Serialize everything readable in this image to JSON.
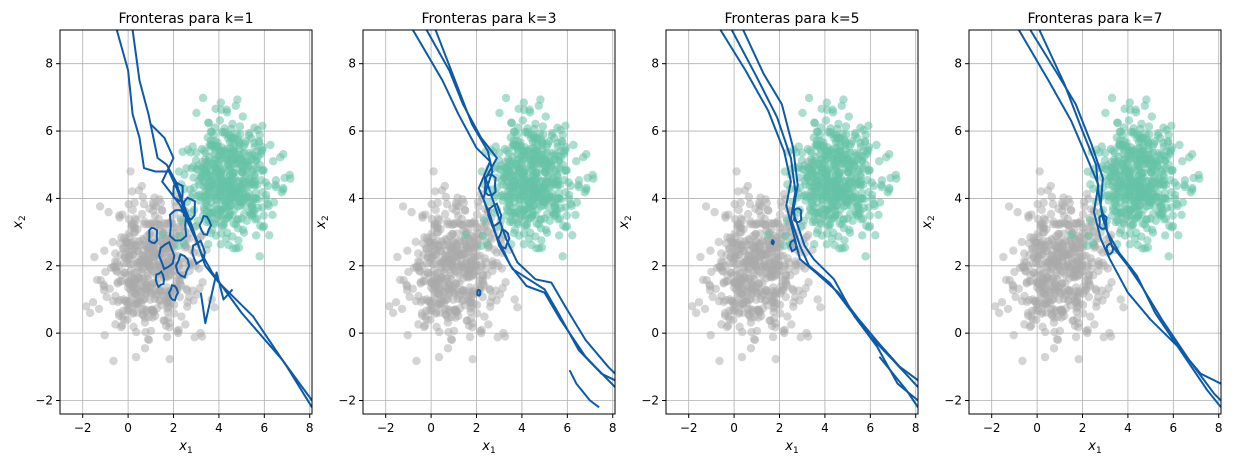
{
  "colors": {
    "class0": "#aaaaaa",
    "class1": "#66c2a5",
    "boundary": "#0d5aa7",
    "grid": "#b0b0b0"
  },
  "chart_data": [
    {
      "type": "scatter",
      "title": "Fronteras para k=1",
      "xlabel": "x",
      "xlabel_sub": "1",
      "ylabel": "x",
      "ylabel_sub": "2",
      "xlim": [
        -3,
        8.1
      ],
      "ylim": [
        -2.4,
        9
      ],
      "xticks": [
        -2,
        0,
        2,
        4,
        6,
        8
      ],
      "yticks": [
        -2,
        0,
        2,
        4,
        6,
        8
      ],
      "grid": true,
      "k": 1
    },
    {
      "type": "scatter",
      "title": "Fronteras para k=3",
      "xlabel": "x",
      "xlabel_sub": "1",
      "ylabel": "x",
      "ylabel_sub": "2",
      "xlim": [
        -3,
        8.1
      ],
      "ylim": [
        -2.4,
        9
      ],
      "xticks": [
        -2,
        0,
        2,
        4,
        6,
        8
      ],
      "yticks": [
        -2,
        0,
        2,
        4,
        6,
        8
      ],
      "grid": true,
      "k": 3
    },
    {
      "type": "scatter",
      "title": "Fronteras para k=5",
      "xlabel": "x",
      "xlabel_sub": "1",
      "ylabel": "x",
      "ylabel_sub": "2",
      "xlim": [
        -3,
        8.1
      ],
      "ylim": [
        -2.4,
        9
      ],
      "xticks": [
        -2,
        0,
        2,
        4,
        6,
        8
      ],
      "yticks": [
        -2,
        0,
        2,
        4,
        6,
        8
      ],
      "grid": true,
      "k": 5
    },
    {
      "type": "scatter",
      "title": "Fronteras para k=7",
      "xlabel": "x",
      "xlabel_sub": "1",
      "ylabel": "x",
      "ylabel_sub": "2",
      "xlim": [
        -3,
        8.1
      ],
      "ylim": [
        -2.4,
        9
      ],
      "xticks": [
        -2,
        0,
        2,
        4,
        6,
        8
      ],
      "yticks": [
        -2,
        0,
        2,
        4,
        6,
        8
      ],
      "grid": true,
      "k": 7
    }
  ],
  "scatter_points": {
    "class0_cluster": {
      "center": [
        1,
        2
      ],
      "spread": 1.0,
      "count": 500
    },
    "class1_cluster": {
      "center": [
        4.5,
        4.5
      ],
      "spread": 0.9,
      "count": 500
    }
  },
  "boundaries": {
    "k1": {
      "lines": [
        [
          [
            -0.5,
            9
          ],
          [
            0,
            7.8
          ],
          [
            0.2,
            6.5
          ],
          [
            0.5,
            5.8
          ],
          [
            0.7,
            4.9
          ],
          [
            1.2,
            4.8
          ],
          [
            1.8,
            4.8
          ],
          [
            2.2,
            4.2
          ],
          [
            2.6,
            3.4
          ],
          [
            3.0,
            2.8
          ],
          [
            3.4,
            2.0
          ],
          [
            4.0,
            1.5
          ],
          [
            5.5,
            0.5
          ],
          [
            7.0,
            -1.0
          ],
          [
            8.1,
            -2.2
          ]
        ],
        [
          [
            0.2,
            9
          ],
          [
            0.5,
            7.5
          ],
          [
            0.9,
            6.5
          ],
          [
            1.3,
            5.2
          ],
          [
            1.7,
            5.0
          ],
          [
            2.1,
            4.5
          ],
          [
            2.4,
            3.9
          ],
          [
            2.8,
            3.2
          ],
          [
            3.2,
            2.4
          ],
          [
            3.7,
            1.8
          ],
          [
            5.0,
            0.6
          ],
          [
            6.8,
            -0.8
          ],
          [
            8.1,
            -2.0
          ]
        ],
        [
          [
            1.0,
            6.2
          ],
          [
            1.6,
            5.8
          ],
          [
            2.0,
            5.2
          ],
          [
            1.5,
            4.5
          ],
          [
            2.3,
            3.8
          ],
          [
            3.1,
            2.6
          ]
        ],
        [
          [
            3.2,
            1.2
          ],
          [
            3.4,
            0.3
          ],
          [
            3.6,
            0.9
          ],
          [
            3.9,
            1.8
          ],
          [
            4.2,
            1.0
          ],
          [
            4.6,
            1.3
          ]
        ]
      ],
      "loops": [
        {
          "c": [
            2.2,
            3.2
          ],
          "r": 0.45
        },
        {
          "c": [
            1.7,
            2.3
          ],
          "r": 0.35
        },
        {
          "c": [
            2.4,
            2.0
          ],
          "r": 0.3
        },
        {
          "c": [
            1.1,
            2.9
          ],
          "r": 0.22
        },
        {
          "c": [
            3.1,
            2.4
          ],
          "r": 0.3
        },
        {
          "c": [
            2.0,
            1.2
          ],
          "r": 0.2
        },
        {
          "c": [
            2.7,
            3.7
          ],
          "r": 0.3
        },
        {
          "c": [
            1.4,
            1.6
          ],
          "r": 0.2
        },
        {
          "c": [
            3.4,
            3.2
          ],
          "r": 0.25
        },
        {
          "c": [
            2.2,
            4.2
          ],
          "r": 0.25
        }
      ]
    },
    "k3": {
      "lines": [
        [
          [
            -0.8,
            9
          ],
          [
            0.5,
            7.5
          ],
          [
            1.2,
            6.5
          ],
          [
            2.0,
            5.5
          ],
          [
            2.6,
            5.1
          ],
          [
            2.1,
            4.3
          ],
          [
            2.6,
            3.5
          ],
          [
            3.0,
            2.6
          ],
          [
            3.6,
            1.9
          ],
          [
            4.3,
            1.6
          ],
          [
            5.0,
            1.3
          ],
          [
            5.6,
            0.6
          ],
          [
            6.5,
            -0.5
          ],
          [
            7.5,
            -1.2
          ],
          [
            8.1,
            -1.4
          ]
        ],
        [
          [
            -0.2,
            9
          ],
          [
            0.8,
            7.8
          ],
          [
            1.4,
            6.8
          ],
          [
            2.2,
            5.8
          ],
          [
            2.9,
            5.2
          ],
          [
            2.4,
            4.6
          ],
          [
            2.9,
            3.6
          ],
          [
            3.3,
            2.8
          ],
          [
            3.8,
            2.1
          ],
          [
            4.6,
            1.6
          ],
          [
            5.3,
            1.5
          ],
          [
            5.9,
            0.8
          ],
          [
            6.8,
            -0.2
          ],
          [
            7.8,
            -1.0
          ],
          [
            8.1,
            -1.2
          ]
        ],
        [
          [
            0.2,
            9
          ],
          [
            1.0,
            7.6
          ],
          [
            1.8,
            6.2
          ],
          [
            2.5,
            5.4
          ],
          [
            2.7,
            4.8
          ],
          [
            2.3,
            4.0
          ],
          [
            2.8,
            3.0
          ],
          [
            3.5,
            2.0
          ],
          [
            4.2,
            1.4
          ],
          [
            5.0,
            1.2
          ],
          [
            5.7,
            0.4
          ],
          [
            6.8,
            -0.7
          ],
          [
            8.1,
            -1.6
          ]
        ],
        [
          [
            6.1,
            -1.1
          ],
          [
            6.4,
            -1.5
          ],
          [
            7.0,
            -2.0
          ],
          [
            7.4,
            -2.2
          ]
        ]
      ],
      "loops": [
        {
          "c": [
            2.6,
            4.4
          ],
          "r": 0.3
        },
        {
          "c": [
            2.8,
            3.5
          ],
          "r": 0.3
        },
        {
          "c": [
            3.2,
            2.8
          ],
          "r": 0.25
        },
        {
          "c": [
            2.1,
            1.2
          ],
          "r": 0.08
        }
      ]
    },
    "k5": {
      "lines": [
        [
          [
            -0.6,
            9
          ],
          [
            0.5,
            7.8
          ],
          [
            1.5,
            6.6
          ],
          [
            2.2,
            5.4
          ],
          [
            2.5,
            4.5
          ],
          [
            2.3,
            3.8
          ],
          [
            2.6,
            3.0
          ],
          [
            2.9,
            2.2
          ],
          [
            3.6,
            1.8
          ],
          [
            4.6,
            1.2
          ],
          [
            5.5,
            0.4
          ],
          [
            6.5,
            -0.4
          ],
          [
            7.3,
            -1.0
          ],
          [
            8.1,
            -1.4
          ]
        ],
        [
          [
            -0.1,
            9
          ],
          [
            1.0,
            7.6
          ],
          [
            1.9,
            6.4
          ],
          [
            2.5,
            5.2
          ],
          [
            2.7,
            4.2
          ],
          [
            2.5,
            3.4
          ],
          [
            2.9,
            2.6
          ],
          [
            3.3,
            2.0
          ],
          [
            4.2,
            1.5
          ],
          [
            5.1,
            0.7
          ],
          [
            6.0,
            -0.1
          ],
          [
            7.0,
            -0.8
          ],
          [
            8.1,
            -1.6
          ]
        ],
        [
          [
            0.4,
            9
          ],
          [
            1.3,
            7.7
          ],
          [
            2.1,
            6.8
          ],
          [
            2.6,
            5.5
          ],
          [
            2.8,
            4.4
          ],
          [
            2.6,
            3.6
          ],
          [
            3.1,
            2.6
          ],
          [
            3.5,
            2.2
          ],
          [
            4.4,
            1.6
          ],
          [
            5.3,
            0.5
          ],
          [
            6.3,
            -0.4
          ],
          [
            7.2,
            -1.5
          ],
          [
            8.1,
            -2.0
          ]
        ],
        [
          [
            6.4,
            -0.7
          ],
          [
            7.0,
            -1.2
          ],
          [
            7.6,
            -1.7
          ],
          [
            8.1,
            -2.2
          ]
        ]
      ],
      "loops": [
        {
          "c": [
            2.8,
            3.5
          ],
          "r": 0.2
        },
        {
          "c": [
            2.6,
            2.6
          ],
          "r": 0.15
        },
        {
          "c": [
            1.7,
            2.7
          ],
          "r": 0.05
        }
      ]
    },
    "k7": {
      "lines": [
        [
          [
            -0.8,
            9
          ],
          [
            0.5,
            7.5
          ],
          [
            1.5,
            6.3
          ],
          [
            2.2,
            5.2
          ],
          [
            2.7,
            4.4
          ],
          [
            2.5,
            3.6
          ],
          [
            2.8,
            2.8
          ],
          [
            3.2,
            2.2
          ],
          [
            4.0,
            1.2
          ],
          [
            5.0,
            0.4
          ],
          [
            6.2,
            -0.4
          ],
          [
            7.2,
            -1.2
          ],
          [
            8.1,
            -1.5
          ]
        ],
        [
          [
            -0.3,
            9
          ],
          [
            0.8,
            7.8
          ],
          [
            1.7,
            6.8
          ],
          [
            2.4,
            5.6
          ],
          [
            2.9,
            4.6
          ],
          [
            2.8,
            3.8
          ],
          [
            3.1,
            3.0
          ],
          [
            3.6,
            2.4
          ],
          [
            4.4,
            1.7
          ],
          [
            5.2,
            0.6
          ],
          [
            6.4,
            -0.6
          ],
          [
            7.5,
            -1.7
          ],
          [
            8.1,
            -2.2
          ]
        ],
        [
          [
            0.1,
            9
          ],
          [
            1.2,
            7.4
          ],
          [
            2.0,
            6.0
          ],
          [
            2.6,
            5.0
          ],
          [
            2.7,
            4.2
          ],
          [
            2.9,
            3.4
          ],
          [
            3.3,
            2.6
          ],
          [
            4.0,
            2.0
          ],
          [
            4.6,
            1.4
          ],
          [
            5.5,
            0.4
          ],
          [
            6.7,
            -0.8
          ],
          [
            7.8,
            -1.8
          ],
          [
            8.1,
            -2.0
          ]
        ]
      ],
      "loops": [
        {
          "c": [
            2.9,
            3.3
          ],
          "r": 0.2
        },
        {
          "c": [
            3.2,
            2.5
          ],
          "r": 0.15
        }
      ]
    }
  }
}
